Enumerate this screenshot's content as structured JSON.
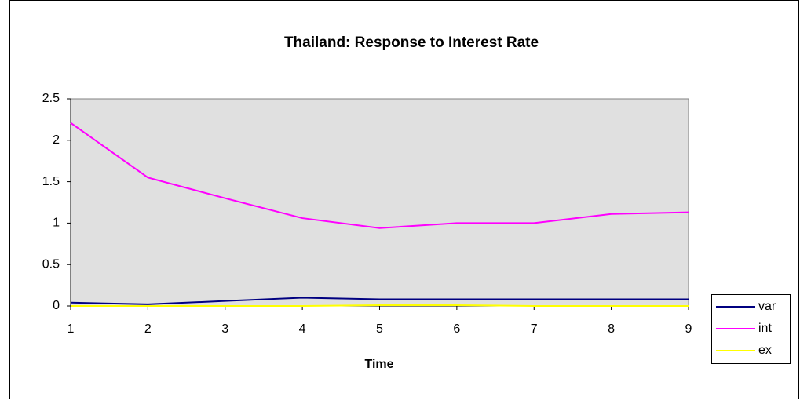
{
  "chart_data": {
    "type": "line",
    "title": "Thailand: Response to Interest Rate",
    "x_label": "Time",
    "x": [
      1,
      2,
      3,
      4,
      5,
      6,
      7,
      8,
      9
    ],
    "xlim": [
      1,
      9
    ],
    "xticks": [
      1,
      2,
      3,
      4,
      5,
      6,
      7,
      8,
      9
    ],
    "ylim": [
      0,
      2.5
    ],
    "yticks": [
      0,
      0.5,
      1,
      1.5,
      2,
      2.5
    ],
    "grid": false,
    "legend": "right",
    "series": [
      {
        "name": "var",
        "color": "#000080",
        "values": [
          0.04,
          0.02,
          0.06,
          0.1,
          0.08,
          0.08,
          0.08,
          0.08,
          0.08
        ]
      },
      {
        "name": "int",
        "color": "#ff00ff",
        "values": [
          2.21,
          1.55,
          1.3,
          1.06,
          0.94,
          1.0,
          1.0,
          1.11,
          1.13
        ]
      },
      {
        "name": "ex",
        "color": "#ffff00",
        "values": [
          0.0,
          0.0,
          0.0,
          0.0,
          0.01,
          0.01,
          0.0,
          0.0,
          0.0
        ]
      }
    ]
  }
}
